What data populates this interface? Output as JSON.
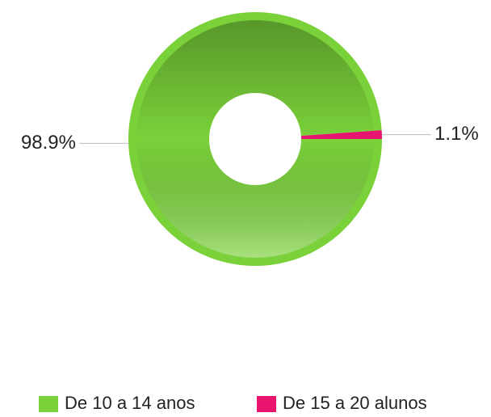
{
  "chart_data": {
    "type": "donut",
    "categories": [
      "De 10 a 14 anos",
      "De 15 a 20 alunos"
    ],
    "values": [
      98.9,
      1.1
    ],
    "value_labels": [
      "98.9%",
      "1.1%"
    ],
    "colors": [
      "#7ad13a",
      "#e8146e"
    ],
    "legend": "bottom"
  }
}
